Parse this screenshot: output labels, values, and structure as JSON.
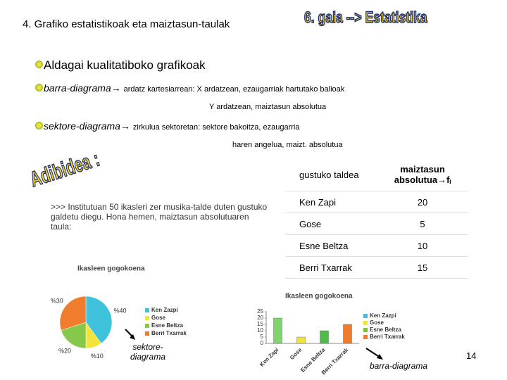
{
  "header": {
    "title": "4. Grafiko estatistikoak eta maiztasun-taulak",
    "logo": "6. gaia --> Estatistika"
  },
  "section": {
    "title": "Aldagai kualitatiboko grafikoak"
  },
  "bullets": [
    {
      "term": "barra-diagrama",
      "arrow": "→",
      "text": "ardatz kartesiarrean: X ardatzean, ezaugarriak hartutako balioak",
      "continuation": "Y ardatzean, maiztasun absolutua"
    },
    {
      "term": "sektore-diagrama",
      "arrow": "→",
      "text": "zirkulua sektoretan: sektore bakoitza, ezaugarria",
      "continuation": "haren angelua, maizt. absolutua"
    }
  ],
  "example": {
    "label": "Adibidea :",
    "text": ">>> Institutuan 50 ikasleri zer musika-talde duten gustuko galdetu diegu. Hona hemen, maiztasun absolutuaren taula:"
  },
  "table": {
    "header": [
      "gustuko taldea",
      "maiztasun absolutua→fᵢ"
    ],
    "rows": [
      [
        "Ken Zapi",
        20
      ],
      [
        "Gose",
        5
      ],
      [
        "Esne Beltza",
        10
      ],
      [
        "Berri Txarrak",
        15
      ]
    ]
  },
  "chart_data": [
    {
      "type": "pie",
      "title": "Ikasleen gogokoena",
      "categories": [
        "Ken Zazpi",
        "Gose",
        "Esne Beltza",
        "Berri Txarrak"
      ],
      "values": [
        40,
        10,
        20,
        30
      ],
      "value_labels": [
        "%40",
        "%10",
        "%20",
        "%30"
      ],
      "colors": [
        "#3fc3dc",
        "#f2e43a",
        "#86c94a",
        "#f07c2e"
      ],
      "legend": "right"
    },
    {
      "type": "bar",
      "title": "Ikasleen gogokoena",
      "categories": [
        "Ken Zapi",
        "Gose",
        "Esne Beltza",
        "Berri Txarrak"
      ],
      "values": [
        20,
        5,
        10,
        15
      ],
      "colors": [
        "#7ed56e",
        "#f2e43a",
        "#4cbd4a",
        "#f07c2e"
      ],
      "legend_entries": [
        {
          "name": "Ken Zazpi",
          "color": "#4db8d8"
        },
        {
          "name": "Gose",
          "color": "#f2e43a"
        },
        {
          "name": "Esne Beltza",
          "color": "#80c040"
        },
        {
          "name": "Berri Txarrak",
          "color": "#f07c2e"
        }
      ],
      "ylim": [
        0,
        25
      ],
      "yticks": [
        0,
        5,
        10,
        15,
        20,
        25
      ],
      "grid": false
    }
  ],
  "captions": {
    "pie": "sektore-diagrama",
    "bar": "barra-diagrama"
  },
  "page_number": "14"
}
